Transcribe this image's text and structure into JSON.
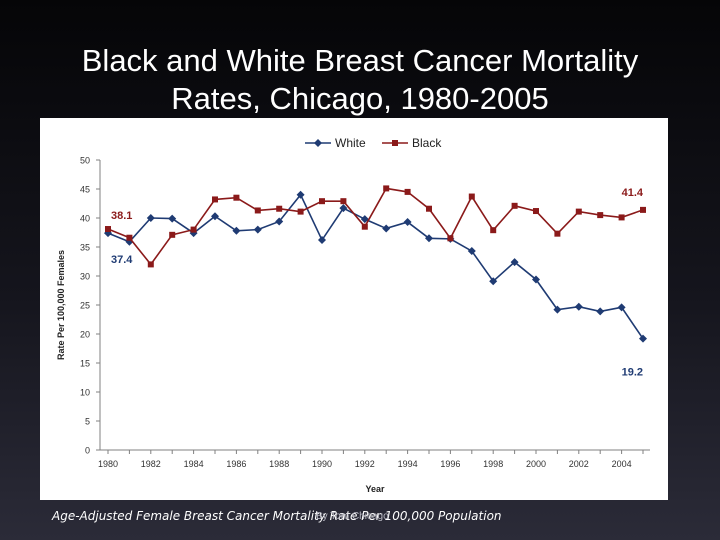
{
  "slide": {
    "title_line1": "Black and White Breast Cancer Mortality",
    "title_line2": "Rates, Chicago, 1980-2005",
    "caption": "Age-Adjusted Female Breast Cancer Mortality Rate Per 100,000 Population",
    "caption_overlay": "By Tom Chicago"
  },
  "colors": {
    "white_series": "#1f3b73",
    "black_series": "#8b1a1a",
    "white_label": "#1f3b73",
    "black_label": "#8b1a1a"
  },
  "chart_data": {
    "type": "line",
    "title": "",
    "xlabel": "Year",
    "ylabel": "Rate Per 100,000 Females",
    "xlim": [
      1980,
      2005
    ],
    "ylim": [
      0,
      50
    ],
    "yticks": [
      0,
      5,
      10,
      15,
      20,
      25,
      30,
      35,
      40,
      45,
      50
    ],
    "xticks": [
      1980,
      1982,
      1984,
      1986,
      1988,
      1990,
      1992,
      1994,
      1996,
      1998,
      2000,
      2002,
      2004
    ],
    "x": [
      1980,
      1981,
      1982,
      1983,
      1984,
      1985,
      1986,
      1987,
      1988,
      1989,
      1990,
      1991,
      1992,
      1993,
      1994,
      1995,
      1996,
      1997,
      1998,
      1999,
      2000,
      2001,
      2002,
      2003,
      2004,
      2005
    ],
    "legend_position": "top-center",
    "series": [
      {
        "name": "White",
        "marker": "diamond",
        "values": [
          37.4,
          35.9,
          40.0,
          39.9,
          37.4,
          40.3,
          37.8,
          38.0,
          39.4,
          44.0,
          36.2,
          41.7,
          39.8,
          38.2,
          39.3,
          36.5,
          36.4,
          34.3,
          29.1,
          32.4,
          29.4,
          24.2,
          24.7,
          23.9,
          24.6,
          19.2
        ]
      },
      {
        "name": "Black",
        "marker": "square",
        "values": [
          38.1,
          36.6,
          32.0,
          37.1,
          38.0,
          43.2,
          43.5,
          41.3,
          41.6,
          41.1,
          42.9,
          42.9,
          38.5,
          45.1,
          44.5,
          41.6,
          36.5,
          43.7,
          37.9,
          42.1,
          41.2,
          37.3,
          41.1,
          40.5,
          40.1,
          41.4
        ]
      }
    ],
    "annotations": [
      {
        "text": "38.1",
        "series": "Black",
        "x": 1980,
        "y": 38.1
      },
      {
        "text": "37.4",
        "series": "White",
        "x": 1980,
        "y": 37.4
      },
      {
        "text": "41.4",
        "series": "Black",
        "x": 2005,
        "y": 41.4
      },
      {
        "text": "19.2",
        "series": "White",
        "x": 2005,
        "y": 19.2
      }
    ]
  }
}
